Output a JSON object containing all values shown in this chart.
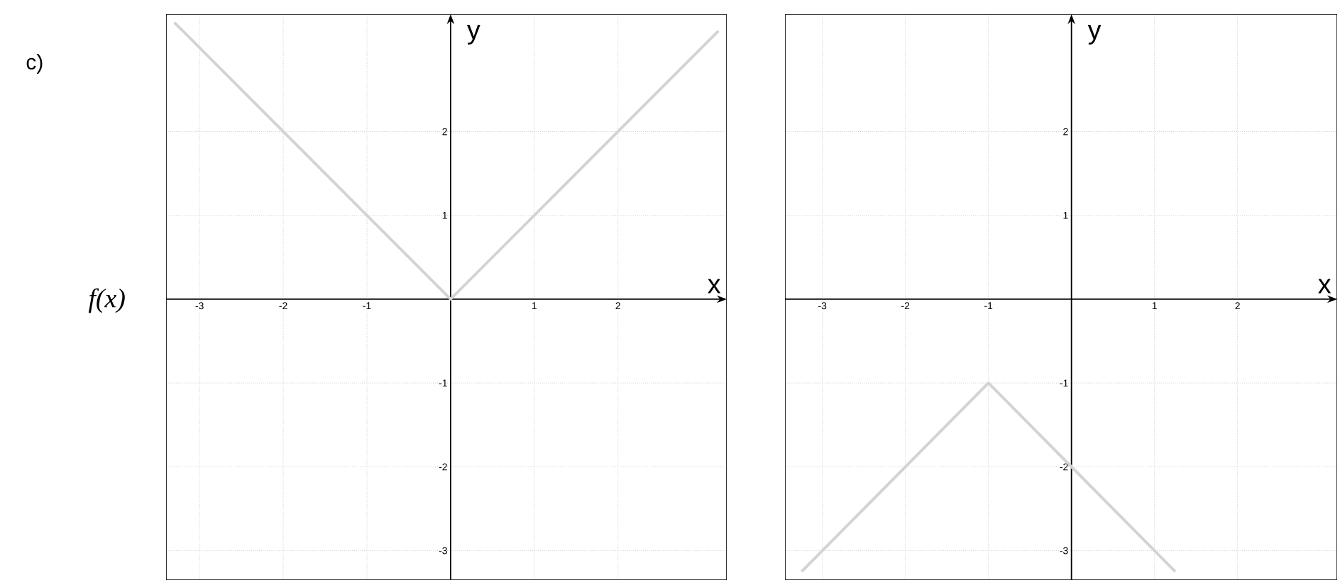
{
  "chart_data": [
    {
      "type": "line",
      "xlabel": "x",
      "ylabel": "y",
      "annotations": [
        "c)",
        "f(x)"
      ],
      "grid": true,
      "xlim": [
        -3.4,
        3.3
      ],
      "ylim": [
        -3.35,
        3.4
      ],
      "xticks": [
        -3,
        -2,
        -1,
        1,
        2
      ],
      "yticks": [
        -3,
        -2,
        -1,
        1,
        2
      ],
      "series": [
        {
          "color": "#d3d3d3",
          "x": [
            -3.3,
            0,
            3.2
          ],
          "values": [
            3.3,
            0,
            3.2
          ]
        }
      ]
    },
    {
      "type": "line",
      "xlabel": "x",
      "ylabel": "y",
      "grid": true,
      "xlim": [
        -3.45,
        3.2
      ],
      "ylim": [
        -3.35,
        3.4
      ],
      "xticks": [
        -3,
        -2,
        -1,
        1,
        2
      ],
      "yticks": [
        -3,
        -2,
        -1,
        1,
        2
      ],
      "series": [
        {
          "color": "#d3d3d3",
          "x": [
            -3.25,
            -1,
            1.25
          ],
          "values": [
            -3.25,
            -1,
            -3.25
          ]
        }
      ]
    }
  ]
}
